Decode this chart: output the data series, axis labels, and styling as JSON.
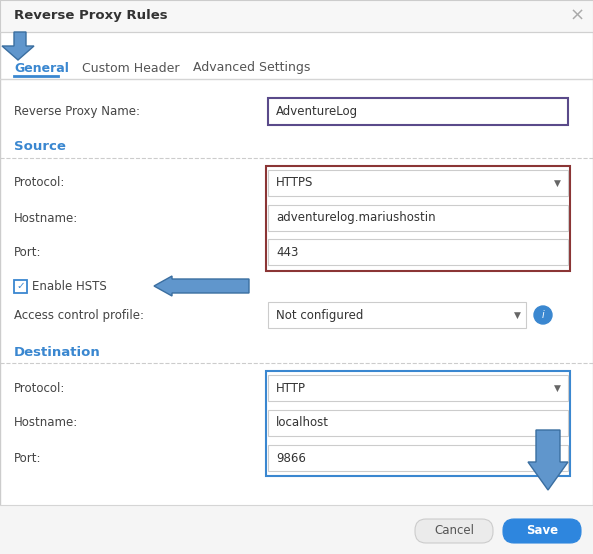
{
  "title": "Reverse Proxy Rules",
  "tabs": [
    "General",
    "Custom Header",
    "Advanced Settings"
  ],
  "fields": {
    "reverse_proxy_name_label": "Reverse Proxy Name:",
    "reverse_proxy_name_value": "AdventureLog",
    "source_label": "Source",
    "source_protocol_label": "Protocol:",
    "source_protocol_value": "HTTPS",
    "source_hostname_label": "Hostname:",
    "source_hostname_value": "adventurelog.mariushostin",
    "source_port_label": "Port:",
    "source_port_value": "443",
    "enable_hsts_label": "Enable HSTS",
    "access_control_label": "Access control profile:",
    "access_control_value": "Not configured",
    "destination_label": "Destination",
    "dest_protocol_label": "Protocol:",
    "dest_protocol_value": "HTTP",
    "dest_hostname_label": "Hostname:",
    "dest_hostname_value": "localhost",
    "dest_port_label": "Port:",
    "dest_port_value": "9866"
  },
  "colors": {
    "background": "#ffffff",
    "title_bar_bg": "#f7f7f7",
    "title_text": "#333333",
    "close_x": "#aaaaaa",
    "active_tab_text": "#3a87d0",
    "inactive_tab_text": "#555555",
    "tab_underline": "#3a87d0",
    "section_header": "#3a87d0",
    "label_text": "#444444",
    "input_border_light": "#cccccc",
    "source_box_border": "#8b3535",
    "dest_box_border": "#3a87d0",
    "name_box_border": "#5a4a8a",
    "dropdown_arrow": "#666666",
    "divider_light": "#e0e0e0",
    "divider_dashed": "#cccccc",
    "arrow_fill": "#6096cc",
    "arrow_stroke": "#3a6ea0",
    "checkbox_check": "#3a87d0",
    "checkbox_border": "#3a87d0",
    "info_circle_bg": "#3a87d0",
    "cancel_btn_bg": "#ebebeb",
    "cancel_btn_border": "#cccccc",
    "cancel_btn_text": "#555555",
    "save_btn_bg": "#2e86de",
    "bottom_bar_bg": "#f5f5f5",
    "outer_border": "#cccccc"
  }
}
